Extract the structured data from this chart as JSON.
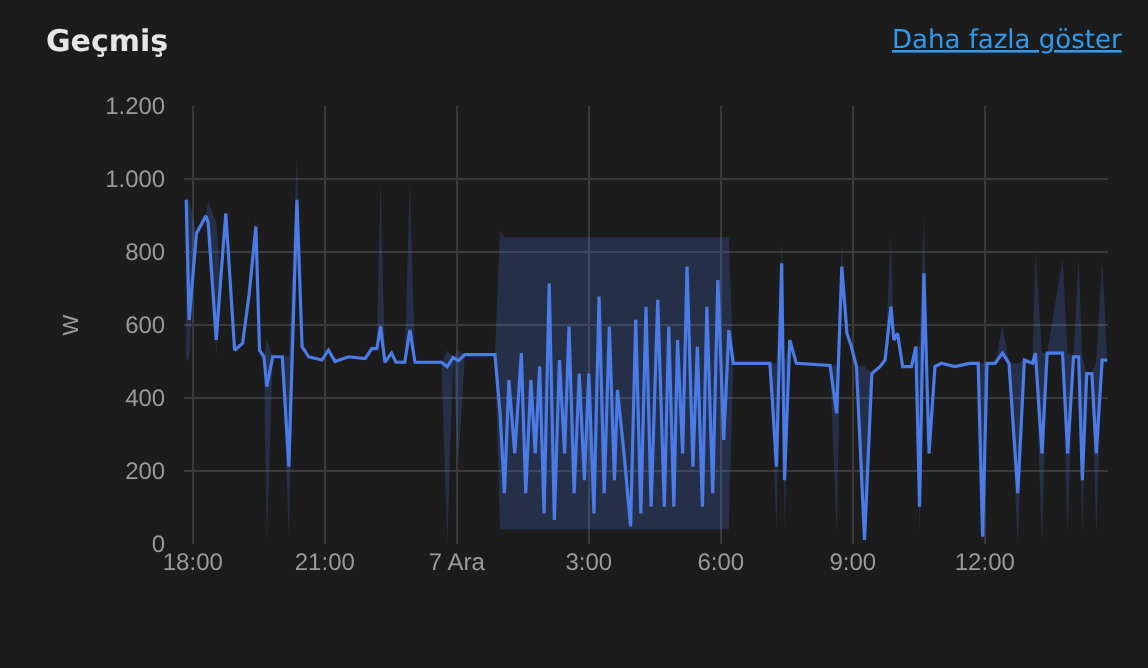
{
  "chart_data": {
    "type": "line",
    "title": "Geçmiş",
    "ylabel": "W",
    "annotations": [
      "Daha fazla göster"
    ],
    "xlim": [
      "--12-06T17:48",
      "--12-07T14:48"
    ],
    "ylim": [
      0,
      1200
    ],
    "xticks": [
      {
        "value": "--12-06T18:00",
        "label": "18:00"
      },
      {
        "value": "--12-06T21:00",
        "label": "21:00"
      },
      {
        "value": "--12-07T00:00",
        "label": "7 Ara"
      },
      {
        "value": "--12-07T03:00",
        "label": "3:00"
      },
      {
        "value": "--12-07T06:00",
        "label": "6:00"
      },
      {
        "value": "--12-07T09:00",
        "label": "9:00"
      },
      {
        "value": "--12-07T12:00",
        "label": "12:00"
      }
    ],
    "yticks": [
      0,
      200,
      400,
      600,
      800,
      {
        "value": 1000,
        "label": "1.000"
      },
      {
        "value": 1200,
        "label": "1.200"
      }
    ],
    "grid": true,
    "marker": "none",
    "line_style": "solid",
    "series": [
      {
        "color": "#4a7be6",
        "x": [
          "--12-06T17:51",
          "--12-06T17:55",
          "--12-06T18:05",
          "--12-06T18:18",
          "--12-06T18:21",
          "--12-06T18:32",
          "--12-06T18:38",
          "--12-06T18:45",
          "--12-06T18:57",
          "--12-06T19:08",
          "--12-06T19:17",
          "--12-06T19:26",
          "--12-06T19:31",
          "--12-06T19:37",
          "--12-06T19:41",
          "--12-06T19:49",
          "--12-06T20:02",
          "--12-06T20:11",
          "--12-06T20:22",
          "--12-06T20:29",
          "--12-06T20:38",
          "--12-06T20:56",
          "--12-06T21:05",
          "--12-06T21:14",
          "--12-06T21:32",
          "--12-06T21:55",
          "--12-06T22:04",
          "--12-06T22:11",
          "--12-06T22:16",
          "--12-06T22:22",
          "--12-06T22:31",
          "--12-06T22:37",
          "--12-06T22:49",
          "--12-06T22:56",
          "--12-06T23:03",
          "--12-06T23:39",
          "--12-06T23:47",
          "--12-06T23:55",
          "--12-07T00:02",
          "--12-07T00:11",
          "--12-07T00:33",
          "--12-07T00:52",
          "--12-07T00:59",
          "--12-07T01:05",
          "--12-07T01:11",
          "--12-07T01:19",
          "--12-07T01:28",
          "--12-07T01:34",
          "--12-07T01:41",
          "--12-07T01:47",
          "--12-07T01:53",
          "--12-07T01:59",
          "--12-07T02:06",
          "--12-07T02:13",
          "--12-07T02:20",
          "--12-07T02:27",
          "--12-07T02:33",
          "--12-07T02:40",
          "--12-07T02:47",
          "--12-07T02:54",
          "--12-07T03:00",
          "--12-07T03:07",
          "--12-07T03:14",
          "--12-07T03:21",
          "--12-07T03:28",
          "--12-07T03:35",
          "--12-07T03:39",
          "--12-07T03:48",
          "--12-07T03:57",
          "--12-07T04:04",
          "--12-07T04:11",
          "--12-07T04:18",
          "--12-07T04:25",
          "--12-07T04:34",
          "--12-07T04:43",
          "--12-07T04:49",
          "--12-07T04:56",
          "--12-07T05:01",
          "--12-07T05:08",
          "--12-07T05:14",
          "--12-07T05:22",
          "--12-07T05:28",
          "--12-07T05:35",
          "--12-07T05:41",
          "--12-07T05:49",
          "--12-07T05:56",
          "--12-07T06:04",
          "--12-07T06:11",
          "--12-07T06:17",
          "--12-07T06:54",
          "--12-07T07:07",
          "--12-07T07:16",
          "--12-07T07:23",
          "--12-07T07:27",
          "--12-07T07:34",
          "--12-07T07:43",
          "--12-07T08:29",
          "--12-07T08:38",
          "--12-07T08:45",
          "--12-07T08:52",
          "--12-07T08:58",
          "--12-07T09:05",
          "--12-07T09:16",
          "--12-07T09:26",
          "--12-07T09:37",
          "--12-07T09:44",
          "--12-07T09:52",
          "--12-07T09:56",
          "--12-07T10:01",
          "--12-07T10:08",
          "--12-07T10:20",
          "--12-07T10:26",
          "--12-07T10:31",
          "--12-07T10:37",
          "--12-07T10:44",
          "--12-07T10:52",
          "--12-07T11:01",
          "--12-07T11:19",
          "--12-07T11:39",
          "--12-07T11:51",
          "--12-07T11:57",
          "--12-07T12:03",
          "--12-07T12:14",
          "--12-07T12:24",
          "--12-07T12:33",
          "--12-07T12:45",
          "--12-07T12:54",
          "--12-07T13:05",
          "--12-07T13:09",
          "--12-07T13:18",
          "--12-07T13:25",
          "--12-07T13:46",
          "--12-07T13:53",
          "--12-07T14:01",
          "--12-07T14:08",
          "--12-07T14:13",
          "--12-07T14:19",
          "--12-07T14:26",
          "--12-07T14:32",
          "--12-07T14:40",
          "--12-07T14:47"
        ],
        "values": [
          943,
          614,
          851,
          899,
          880,
          559,
          723,
          906,
          531,
          550,
          687,
          870,
          531,
          513,
          431,
          513,
          513,
          212,
          943,
          541,
          513,
          504,
          531,
          500,
          513,
          508,
          535,
          535,
          596,
          498,
          523,
          498,
          498,
          586,
          498,
          498,
          486,
          511,
          502,
          519,
          519,
          519,
          358,
          139,
          449,
          248,
          523,
          139,
          449,
          248,
          486,
          84,
          714,
          66,
          504,
          248,
          596,
          139,
          467,
          175,
          467,
          84,
          678,
          139,
          596,
          175,
          422,
          248,
          48,
          614,
          84,
          650,
          102,
          669,
          102,
          596,
          102,
          559,
          248,
          760,
          212,
          541,
          102,
          650,
          139,
          723,
          285,
          586,
          495,
          495,
          495,
          212,
          769,
          175,
          559,
          495,
          489,
          358,
          760,
          577,
          541,
          486,
          11,
          467,
          486,
          504,
          650,
          559,
          577,
          486,
          486,
          541,
          102,
          742,
          248,
          486,
          495,
          486,
          495,
          495,
          20,
          495,
          495,
          523,
          495,
          139,
          504,
          495,
          523,
          248,
          523,
          523,
          248,
          513,
          513,
          175,
          467,
          467,
          248,
          504,
          504
        ],
        "lower": [
          500,
          510,
          851,
          899,
          880,
          520,
          723,
          906,
          531,
          550,
          687,
          870,
          531,
          513,
          0,
          513,
          513,
          20,
          943,
          541,
          513,
          504,
          531,
          500,
          513,
          508,
          535,
          535,
          596,
          498,
          523,
          498,
          498,
          586,
          498,
          498,
          0,
          511,
          220,
          519,
          519,
          519,
          40,
          40,
          40,
          40,
          40,
          40,
          40,
          40,
          40,
          40,
          40,
          40,
          40,
          40,
          40,
          40,
          40,
          40,
          40,
          40,
          40,
          40,
          40,
          40,
          40,
          40,
          40,
          40,
          40,
          40,
          40,
          40,
          40,
          40,
          40,
          40,
          40,
          40,
          40,
          40,
          40,
          40,
          40,
          40,
          40,
          40,
          495,
          495,
          495,
          40,
          769,
          40,
          559,
          495,
          489,
          30,
          760,
          577,
          541,
          486,
          0,
          467,
          486,
          504,
          650,
          559,
          577,
          486,
          486,
          541,
          20,
          742,
          248,
          486,
          495,
          486,
          495,
          495,
          0,
          495,
          495,
          523,
          495,
          0,
          504,
          495,
          523,
          0,
          523,
          523,
          30,
          513,
          513,
          30,
          467,
          467,
          30,
          504,
          504
        ],
        "upper": [
          950,
          943,
          851,
          899,
          940,
          880,
          723,
          906,
          531,
          550,
          687,
          890,
          531,
          513,
          560,
          513,
          513,
          513,
          1060,
          541,
          513,
          504,
          531,
          500,
          513,
          508,
          535,
          535,
          1000,
          498,
          523,
          498,
          498,
          990,
          498,
          498,
          530,
          511,
          530,
          519,
          519,
          519,
          860,
          840,
          840,
          840,
          840,
          840,
          840,
          840,
          840,
          840,
          840,
          840,
          840,
          840,
          840,
          840,
          840,
          840,
          840,
          840,
          840,
          840,
          840,
          840,
          840,
          840,
          840,
          840,
          840,
          840,
          840,
          840,
          840,
          840,
          840,
          840,
          840,
          840,
          840,
          840,
          840,
          840,
          840,
          840,
          840,
          840,
          495,
          495,
          495,
          495,
          830,
          500,
          559,
          495,
          489,
          489,
          820,
          577,
          541,
          486,
          486,
          467,
          486,
          504,
          850,
          559,
          577,
          486,
          486,
          541,
          541,
          900,
          248,
          486,
          495,
          486,
          495,
          495,
          495,
          495,
          495,
          600,
          495,
          495,
          504,
          495,
          800,
          523,
          523,
          780,
          523,
          513,
          780,
          513,
          467,
          467,
          500,
          780,
          504
        ]
      }
    ]
  }
}
